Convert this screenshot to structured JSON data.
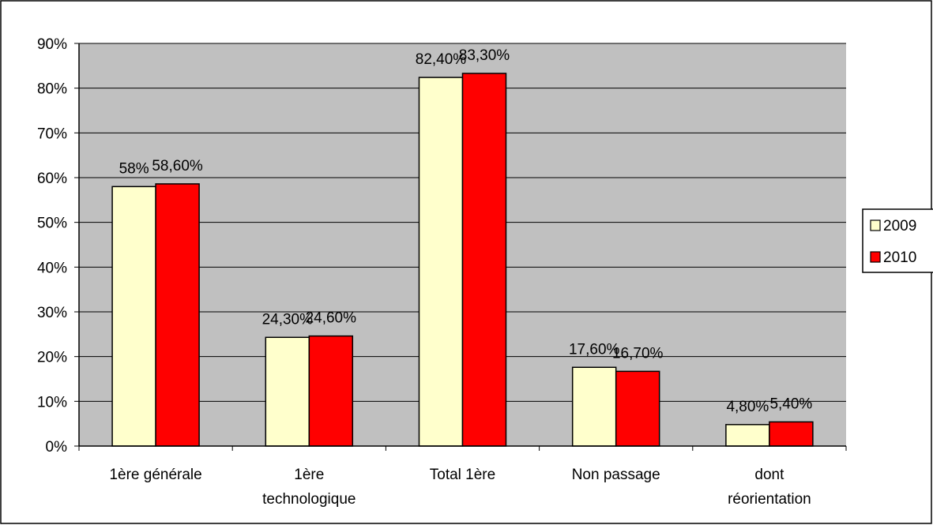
{
  "chart_data": {
    "type": "bar",
    "categories": [
      [
        "1ère générale"
      ],
      [
        "1ère",
        "technologique"
      ],
      [
        "Total 1ère"
      ],
      [
        "Non passage"
      ],
      [
        "dont",
        "réorientation"
      ]
    ],
    "series": [
      {
        "name": "2009",
        "color": "#FFFFCC",
        "values": [
          58,
          24.3,
          82.4,
          17.6,
          4.8
        ],
        "labels": [
          "58%",
          "24,30%",
          "82,40%",
          "17,60%",
          "4,80%"
        ]
      },
      {
        "name": "2010",
        "color": "#FF0000",
        "values": [
          58.6,
          24.6,
          83.3,
          16.7,
          5.4
        ],
        "labels": [
          "58,60%",
          "24,60%",
          "83,30%",
          "16,70%",
          "5,40%"
        ]
      }
    ],
    "yticks": [
      "0%",
      "10%",
      "20%",
      "30%",
      "40%",
      "50%",
      "60%",
      "70%",
      "80%",
      "90%"
    ],
    "ylim": [
      0,
      90
    ],
    "plot_background": "#C0C0C0",
    "grid": true,
    "legend_position": "right"
  }
}
